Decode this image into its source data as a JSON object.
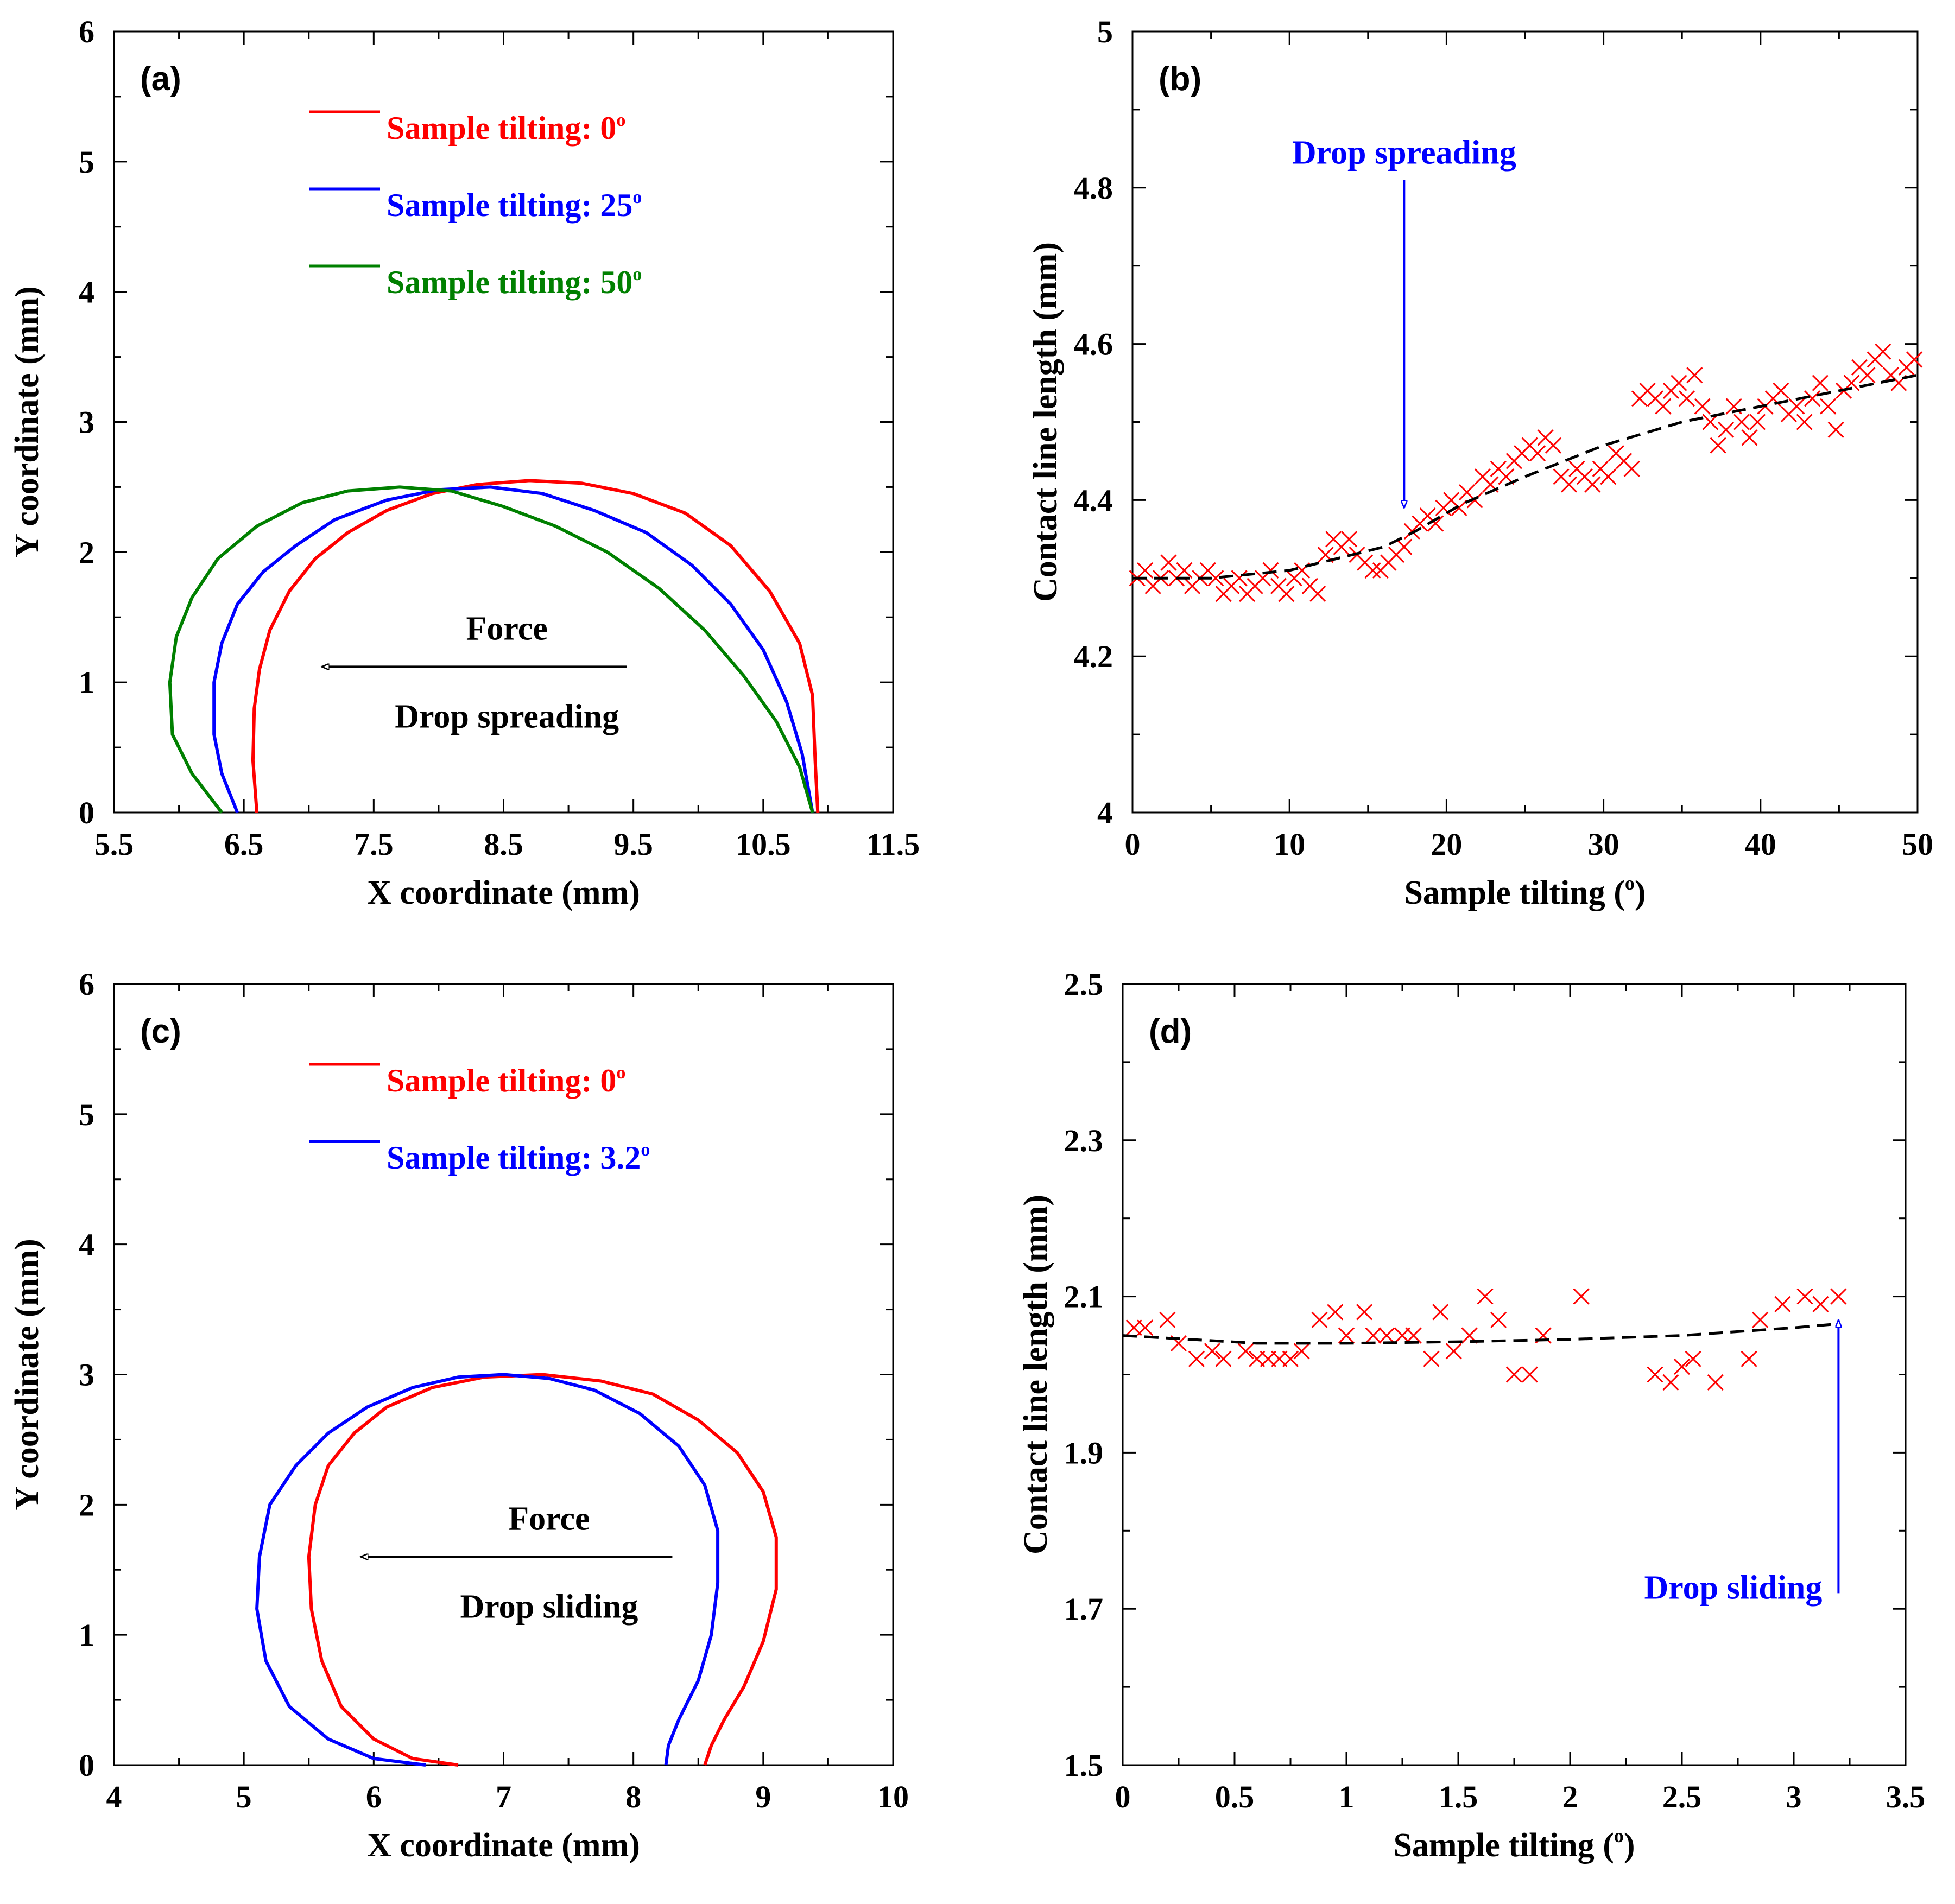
{
  "chart_data": [
    {
      "id": "a",
      "type": "line",
      "panel_label": "(a)",
      "xlabel": "X coordinate (mm)",
      "ylabel": "Y coordinate (mm)",
      "xlim": [
        5.5,
        11.5
      ],
      "ylim": [
        0,
        6
      ],
      "xticks": [
        "5.5",
        "6.5",
        "7.5",
        "8.5",
        "9.5",
        "10.5",
        "11.5"
      ],
      "yticks": [
        "0",
        "1",
        "2",
        "3",
        "4",
        "5",
        "6"
      ],
      "legend": [
        {
          "prefix": "Sample tilting: ",
          "value": "0",
          "color": "#ff0000"
        },
        {
          "prefix": "Sample tilting: ",
          "value": "25",
          "color": "#0000ff"
        },
        {
          "prefix": "Sample tilting: ",
          "value": "50",
          "color": "#008000"
        }
      ],
      "degree_symbol": "o",
      "series": [
        {
          "name": "Sample tilting: 0°",
          "color": "#ff0000",
          "x": [
            6.6,
            6.57,
            6.58,
            6.62,
            6.7,
            6.85,
            7.05,
            7.3,
            7.6,
            7.95,
            8.3,
            8.7,
            9.1,
            9.5,
            9.9,
            10.25,
            10.55,
            10.78,
            10.88,
            10.9,
            10.92
          ],
          "y": [
            0,
            0.4,
            0.8,
            1.1,
            1.4,
            1.7,
            1.95,
            2.15,
            2.32,
            2.45,
            2.52,
            2.55,
            2.53,
            2.45,
            2.3,
            2.05,
            1.7,
            1.3,
            0.9,
            0.4,
            0
          ]
        },
        {
          "name": "Sample tilting: 25°",
          "color": "#0000ff",
          "x": [
            6.45,
            6.33,
            6.27,
            6.27,
            6.33,
            6.45,
            6.65,
            6.9,
            7.2,
            7.6,
            8.0,
            8.4,
            8.8,
            9.2,
            9.6,
            9.95,
            10.25,
            10.5,
            10.68,
            10.8,
            10.88
          ],
          "y": [
            0,
            0.3,
            0.6,
            1.0,
            1.3,
            1.6,
            1.85,
            2.05,
            2.25,
            2.4,
            2.48,
            2.5,
            2.45,
            2.32,
            2.15,
            1.9,
            1.6,
            1.25,
            0.85,
            0.45,
            0
          ]
        },
        {
          "name": "Sample tilting: 50°",
          "color": "#008000",
          "x": [
            6.33,
            6.1,
            5.95,
            5.93,
            5.98,
            6.1,
            6.3,
            6.6,
            6.95,
            7.3,
            7.7,
            8.1,
            8.5,
            8.9,
            9.3,
            9.7,
            10.05,
            10.35,
            10.6,
            10.78,
            10.88
          ],
          "y": [
            0,
            0.3,
            0.6,
            1.0,
            1.35,
            1.65,
            1.95,
            2.2,
            2.38,
            2.47,
            2.5,
            2.47,
            2.35,
            2.2,
            2.0,
            1.72,
            1.4,
            1.05,
            0.7,
            0.35,
            0
          ]
        }
      ],
      "annotation": {
        "top_text": "Force",
        "bottom_text": "Drop spreading",
        "arrow_from": [
          9.45,
          1.12
        ],
        "arrow_to": [
          7.1,
          1.12
        ]
      }
    },
    {
      "id": "b",
      "type": "scatter",
      "panel_label": "(b)",
      "xlabel": "Sample tilting (",
      "xlabel_unit": "o",
      "xlabel_close": ")",
      "ylabel": "Contact line length (mm)",
      "xlim": [
        0,
        50
      ],
      "ylim": [
        4,
        5
      ],
      "xticks": [
        "0",
        "10",
        "20",
        "30",
        "40",
        "50"
      ],
      "yticks": [
        "4",
        "4.2",
        "4.4",
        "4.6",
        "4.8",
        "5"
      ],
      "marker": "x",
      "marker_color": "#ff0000",
      "x": [
        0.3,
        0.8,
        1.3,
        1.8,
        2.3,
        2.8,
        3.3,
        3.8,
        4.3,
        4.8,
        5.3,
        5.8,
        6.3,
        6.8,
        7.3,
        7.8,
        8.3,
        8.8,
        9.3,
        9.8,
        10.3,
        10.8,
        11.3,
        11.8,
        12.3,
        12.8,
        13.3,
        13.8,
        14.3,
        14.8,
        15.3,
        15.8,
        16.3,
        16.8,
        17.3,
        17.8,
        18.3,
        18.8,
        19.3,
        19.8,
        20.3,
        20.8,
        21.3,
        21.8,
        22.3,
        22.8,
        23.3,
        23.8,
        24.3,
        24.8,
        25.3,
        25.8,
        26.3,
        26.8,
        27.3,
        27.8,
        28.3,
        28.8,
        29.3,
        29.8,
        30.3,
        30.8,
        31.3,
        31.8,
        32.3,
        32.8,
        33.3,
        33.8,
        34.3,
        34.8,
        35.3,
        35.8,
        36.3,
        36.8,
        37.3,
        37.8,
        38.3,
        38.8,
        39.3,
        39.8,
        40.3,
        40.8,
        41.3,
        41.8,
        42.3,
        42.8,
        43.3,
        43.8,
        44.3,
        44.8,
        45.3,
        45.8,
        46.3,
        46.8,
        47.3,
        47.8,
        48.3,
        48.8,
        49.3,
        49.8
      ],
      "y": [
        4.3,
        4.31,
        4.29,
        4.3,
        4.32,
        4.3,
        4.31,
        4.29,
        4.3,
        4.31,
        4.3,
        4.28,
        4.29,
        4.3,
        4.28,
        4.29,
        4.3,
        4.31,
        4.29,
        4.28,
        4.3,
        4.31,
        4.29,
        4.28,
        4.33,
        4.35,
        4.34,
        4.35,
        4.33,
        4.32,
        4.31,
        4.31,
        4.32,
        4.33,
        4.34,
        4.36,
        4.37,
        4.38,
        4.37,
        4.39,
        4.4,
        4.39,
        4.41,
        4.4,
        4.43,
        4.42,
        4.44,
        4.43,
        4.45,
        4.46,
        4.47,
        4.46,
        4.48,
        4.47,
        4.43,
        4.42,
        4.44,
        4.43,
        4.42,
        4.44,
        4.43,
        4.46,
        4.45,
        4.44,
        4.53,
        4.54,
        4.53,
        4.52,
        4.54,
        4.55,
        4.53,
        4.56,
        4.52,
        4.5,
        4.47,
        4.49,
        4.52,
        4.5,
        4.48,
        4.5,
        4.52,
        4.53,
        4.54,
        4.51,
        4.52,
        4.5,
        4.53,
        4.55,
        4.52,
        4.49,
        4.54,
        4.55,
        4.57,
        4.56,
        4.58,
        4.59,
        4.56,
        4.55,
        4.57,
        4.58
      ],
      "trend": {
        "x": [
          0,
          5,
          10,
          13,
          16,
          18,
          21,
          25,
          30,
          35,
          40,
          45,
          50
        ],
        "y": [
          4.3,
          4.3,
          4.31,
          4.325,
          4.34,
          4.36,
          4.395,
          4.43,
          4.47,
          4.5,
          4.52,
          4.54,
          4.56
        ]
      },
      "annotation": {
        "text": "Drop spreading",
        "arrow_from": [
          17.3,
          4.81
        ],
        "arrow_to": [
          17.3,
          4.39
        ]
      }
    },
    {
      "id": "c",
      "type": "line",
      "panel_label": "(c)",
      "xlabel": "X coordinate (mm)",
      "ylabel": "Y coordinate (mm)",
      "xlim": [
        4,
        10
      ],
      "ylim": [
        0,
        6
      ],
      "xticks": [
        "4",
        "5",
        "6",
        "7",
        "8",
        "9",
        "10"
      ],
      "yticks": [
        "0",
        "1",
        "2",
        "3",
        "4",
        "5",
        "6"
      ],
      "legend": [
        {
          "prefix": "Sample tilting: ",
          "value": "0",
          "color": "#ff0000"
        },
        {
          "prefix": "Sample tilting: ",
          "value": "3.2",
          "color": "#0000ff"
        }
      ],
      "degree_symbol": "o",
      "series": [
        {
          "name": "Sample tilting: 0°",
          "color": "#ff0000",
          "x": [
            6.65,
            6.3,
            6.0,
            5.75,
            5.6,
            5.52,
            5.5,
            5.55,
            5.65,
            5.85,
            6.1,
            6.45,
            6.85,
            7.3,
            7.75,
            8.15,
            8.5,
            8.8,
            9.0,
            9.1,
            9.1,
            9.0,
            8.85,
            8.7,
            8.6,
            8.55
          ],
          "y": [
            0,
            0.05,
            0.2,
            0.45,
            0.8,
            1.2,
            1.6,
            2.0,
            2.3,
            2.55,
            2.75,
            2.9,
            2.98,
            3.0,
            2.95,
            2.85,
            2.65,
            2.4,
            2.1,
            1.75,
            1.35,
            0.95,
            0.6,
            0.35,
            0.15,
            0
          ]
        },
        {
          "name": "Sample tilting: 3.2°",
          "color": "#0000ff",
          "x": [
            6.4,
            6.0,
            5.65,
            5.35,
            5.17,
            5.1,
            5.12,
            5.2,
            5.4,
            5.65,
            5.95,
            6.3,
            6.65,
            7.0,
            7.35,
            7.7,
            8.05,
            8.35,
            8.55,
            8.65,
            8.65,
            8.6,
            8.5,
            8.35,
            8.27,
            8.25
          ],
          "y": [
            0,
            0.05,
            0.2,
            0.45,
            0.8,
            1.2,
            1.6,
            2.0,
            2.3,
            2.55,
            2.75,
            2.9,
            2.98,
            3.0,
            2.97,
            2.88,
            2.7,
            2.45,
            2.15,
            1.8,
            1.4,
            1.0,
            0.65,
            0.35,
            0.15,
            0
          ]
        }
      ],
      "annotation": {
        "top_text": "Force",
        "bottom_text": "Drop sliding",
        "arrow_from": [
          8.3,
          1.6
        ],
        "arrow_to": [
          5.9,
          1.6
        ]
      }
    },
    {
      "id": "d",
      "type": "scatter",
      "panel_label": "(d)",
      "xlabel": "Sample tilting (",
      "xlabel_unit": "o",
      "xlabel_close": ")",
      "ylabel": "Contact line length (mm)",
      "xlim": [
        0,
        3.5
      ],
      "ylim": [
        1.5,
        2.5
      ],
      "xticks": [
        "0",
        "0.5",
        "1",
        "1.5",
        "2",
        "2.5",
        "3",
        "3.5"
      ],
      "yticks": [
        "1.5",
        "1.7",
        "1.9",
        "2.1",
        "2.3",
        "2.5"
      ],
      "marker": "x",
      "marker_color": "#ff0000",
      "x": [
        0.05,
        0.1,
        0.2,
        0.25,
        0.33,
        0.4,
        0.45,
        0.55,
        0.6,
        0.65,
        0.7,
        0.75,
        0.8,
        0.88,
        0.95,
        1.0,
        1.08,
        1.12,
        1.18,
        1.25,
        1.3,
        1.38,
        1.42,
        1.48,
        1.55,
        1.62,
        1.68,
        1.75,
        1.82,
        1.88,
        2.05,
        2.38,
        2.45,
        2.5,
        2.55,
        2.65,
        2.8,
        2.85,
        2.95,
        3.05,
        3.12,
        3.2
      ],
      "y": [
        2.06,
        2.06,
        2.07,
        2.04,
        2.02,
        2.03,
        2.02,
        2.03,
        2.02,
        2.02,
        2.02,
        2.02,
        2.03,
        2.07,
        2.08,
        2.05,
        2.08,
        2.05,
        2.05,
        2.05,
        2.05,
        2.02,
        2.08,
        2.03,
        2.05,
        2.1,
        2.07,
        2.0,
        2.0,
        2.05,
        2.1,
        2.0,
        1.99,
        2.01,
        2.02,
        1.99,
        2.02,
        2.07,
        2.09,
        2.1,
        2.09,
        2.1
      ],
      "trend": {
        "x": [
          0,
          0.3,
          0.6,
          1.0,
          1.5,
          2.0,
          2.5,
          3.0,
          3.2
        ],
        "y": [
          2.05,
          2.045,
          2.04,
          2.04,
          2.042,
          2.045,
          2.05,
          2.06,
          2.065
        ]
      },
      "annotation": {
        "text": "Drop sliding",
        "arrow_from": [
          3.2,
          1.72
        ],
        "arrow_to": [
          3.2,
          2.07
        ]
      }
    }
  ]
}
